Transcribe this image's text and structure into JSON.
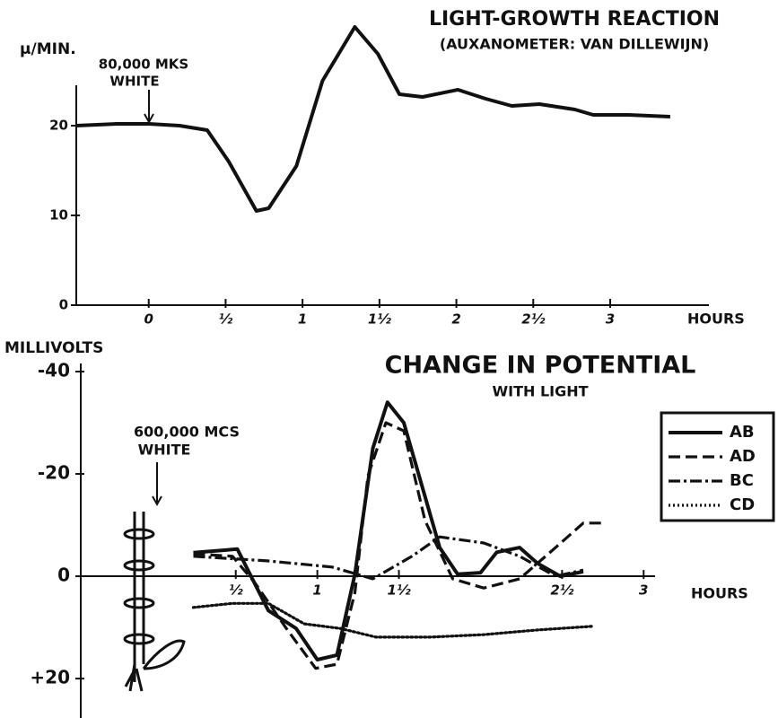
{
  "chart_data": [
    {
      "type": "line",
      "title": "LIGHT-GROWTH REACTION",
      "subtitle": "(AUXANOMETER: VAN DILLEWIJN)",
      "y_label": "μ/MIN.",
      "x_label": "HOURS",
      "annotation": [
        "80,000 MKS",
        "WHITE"
      ],
      "xlim": [
        -0.5,
        3.7
      ],
      "ylim": [
        0,
        32
      ],
      "xticks": [
        0,
        {
          "value": 0.5,
          "label": "½"
        },
        1,
        {
          "value": 1.5,
          "label": "1½"
        },
        2,
        {
          "value": 2.5,
          "label": "2½"
        },
        3
      ],
      "yticks": [
        0,
        10,
        20
      ],
      "series": [
        {
          "color": "#111111",
          "style": "solid",
          "x": [
            -0.47,
            -0.21,
            0,
            0.2,
            0.38,
            0.52,
            0.7,
            0.78,
            0.96,
            1.13,
            1.34,
            1.49,
            1.63,
            1.78,
            2.01,
            2.19,
            2.36,
            2.54,
            2.77,
            2.89,
            3.12,
            3.39
          ],
          "values": [
            20,
            20.2,
            20.2,
            20,
            19.5,
            16,
            10.5,
            10.8,
            15.5,
            25,
            31,
            28,
            23.5,
            23.2,
            24,
            23,
            22.2,
            22.4,
            21.8,
            21.2,
            21.2,
            21
          ]
        }
      ]
    },
    {
      "type": "line",
      "title": "CHANGE IN POTENTIAL",
      "subtitle": "WITH LIGHT",
      "y_label": "MILLIVOLTS",
      "x_label": "HOURS",
      "annotation": [
        "600,000 MCS",
        "WHITE"
      ],
      "xlim": [
        -0.45,
        3.4
      ],
      "ylim": [
        -40,
        27
      ],
      "y_inverted": true,
      "xticks": [
        {
          "value": 0.5,
          "label": "½"
        },
        1,
        {
          "value": 1.5,
          "label": "1½"
        },
        {
          "value": 2.5,
          "label": "2½"
        },
        3
      ],
      "yticks": [
        -40,
        -20,
        0,
        {
          "value": 20,
          "label": "+20"
        }
      ],
      "legend": "right",
      "series": [
        {
          "name": "AB",
          "color": "#111111",
          "style": "solid",
          "x": [
            0.24,
            0.51,
            0.7,
            0.87,
            1.0,
            1.12,
            1.23,
            1.34,
            1.43,
            1.53,
            1.75,
            1.86,
            2.0,
            2.1,
            2.24,
            2.35,
            2.49,
            2.63
          ],
          "values": [
            -4.6,
            -5.3,
            6.7,
            10.2,
            16.3,
            15.4,
            -0.4,
            -25,
            -34,
            -30,
            -5.6,
            -0.4,
            -0.7,
            -4.7,
            -5.6,
            -2.5,
            0,
            -0.9
          ]
        },
        {
          "name": "AD",
          "color": "#111111",
          "style": "dashed",
          "x": [
            0.24,
            0.48,
            0.62,
            0.81,
            0.99,
            1.12,
            1.23,
            1.31,
            1.42,
            1.53,
            1.66,
            1.83,
            2.02,
            2.24,
            2.46,
            2.63,
            2.76
          ],
          "values": [
            -4.4,
            -3.9,
            1.4,
            10.2,
            18,
            17.2,
            3.2,
            -19.6,
            -30,
            -28.4,
            -10.9,
            0.5,
            2.3,
            0.5,
            -5.6,
            -10.4,
            -10.4
          ]
        },
        {
          "name": "BC",
          "color": "#111111",
          "style": "dashdot",
          "x": [
            0.24,
            0.7,
            1.09,
            1.34,
            1.58,
            1.75,
            2.02,
            2.24,
            2.46,
            2.63
          ],
          "values": [
            -3.9,
            -3,
            -1.8,
            0.5,
            -3.9,
            -7.7,
            -6.5,
            -3.9,
            0,
            -1.2
          ]
        },
        {
          "name": "CD",
          "color": "#111111",
          "style": "dotted",
          "x": [
            0.24,
            0.48,
            0.7,
            0.92,
            1.14,
            1.36,
            1.69,
            2.02,
            2.35,
            2.68
          ],
          "values": [
            6.1,
            5.3,
            5.3,
            9.3,
            10.2,
            11.9,
            11.9,
            11.4,
            10.5,
            9.8
          ]
        }
      ]
    }
  ]
}
